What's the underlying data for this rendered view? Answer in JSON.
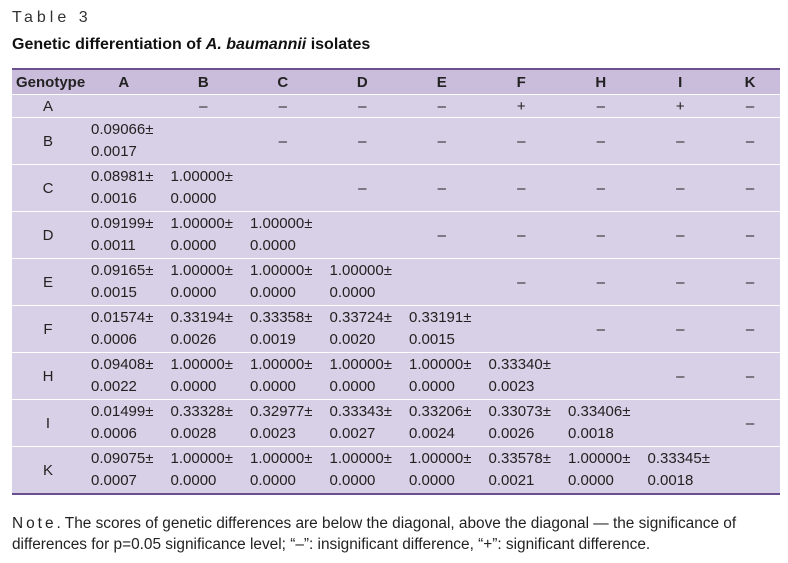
{
  "table_label": "Table 3",
  "title_prefix": "Genetic differentiation of ",
  "title_italic": "A. baumannii",
  "title_suffix": " isolates",
  "headers": [
    "Genotype",
    "A",
    "B",
    "C",
    "D",
    "E",
    "F",
    "H",
    "I",
    "K"
  ],
  "rows": [
    {
      "genotype": "A",
      "cells": [
        null,
        "–",
        "–",
        "–",
        "–",
        "+",
        "–",
        "+",
        "–"
      ]
    },
    {
      "genotype": "B",
      "cells": [
        [
          "0.09066±",
          "0.0017"
        ],
        null,
        "–",
        "–",
        "–",
        "–",
        "–",
        "–",
        "–"
      ]
    },
    {
      "genotype": "C",
      "cells": [
        [
          "0.08981±",
          "0.0016"
        ],
        [
          "1.00000±",
          "0.0000"
        ],
        null,
        "–",
        "–",
        "–",
        "–",
        "–",
        "–"
      ]
    },
    {
      "genotype": "D",
      "cells": [
        [
          "0.09199±",
          "0.0011"
        ],
        [
          "1.00000±",
          "0.0000"
        ],
        [
          "1.00000±",
          "0.0000"
        ],
        null,
        "–",
        "–",
        "–",
        "–",
        "–"
      ]
    },
    {
      "genotype": "E",
      "cells": [
        [
          "0.09165±",
          "0.0015"
        ],
        [
          "1.00000±",
          "0.0000"
        ],
        [
          "1.00000±",
          "0.0000"
        ],
        [
          "1.00000±",
          "0.0000"
        ],
        null,
        "–",
        "–",
        "–",
        "–"
      ]
    },
    {
      "genotype": "F",
      "cells": [
        [
          "0.01574±",
          "0.0006"
        ],
        [
          "0.33194±",
          "0.0026"
        ],
        [
          "0.33358±",
          "0.0019"
        ],
        [
          "0.33724±",
          "0.0020"
        ],
        [
          "0.33191±",
          "0.0015"
        ],
        null,
        "–",
        "–",
        "–"
      ]
    },
    {
      "genotype": "H",
      "cells": [
        [
          "0.09408±",
          "0.0022"
        ],
        [
          "1.00000±",
          "0.0000"
        ],
        [
          "1.00000±",
          "0.0000"
        ],
        [
          "1.00000±",
          "0.0000"
        ],
        [
          "1.00000±",
          "0.0000"
        ],
        [
          "0.33340±",
          "0.0023"
        ],
        null,
        "–",
        "–"
      ]
    },
    {
      "genotype": "I",
      "cells": [
        [
          "0.01499±",
          "0.0006"
        ],
        [
          "0.33328±",
          "0.0028"
        ],
        [
          "0.32977±",
          "0.0023"
        ],
        [
          "0.33343±",
          "0.0027"
        ],
        [
          "0.33206±",
          "0.0024"
        ],
        [
          "0.33073±",
          "0.0026"
        ],
        [
          "0.33406±",
          "0.0018"
        ],
        null,
        "–"
      ]
    },
    {
      "genotype": "K",
      "cells": [
        [
          "0.09075±",
          "0.0007"
        ],
        [
          "1.00000±",
          "0.0000"
        ],
        [
          "1.00000±",
          "0.0000"
        ],
        [
          "1.00000±",
          "0.0000"
        ],
        [
          "1.00000±",
          "0.0000"
        ],
        [
          "0.33578±",
          "0.0021"
        ],
        [
          "1.00000±",
          "0.0000"
        ],
        [
          "0.33345±",
          "0.0018"
        ],
        null
      ]
    }
  ],
  "note_word": "Note",
  "note_text": ". The scores of genetic differences are below the diagonal, above the diagonal — the significance of differences for p=0.05 significance level; “–”: insignificant difference, “+”: significant difference.",
  "colors": {
    "header_bg": "#c9bddb",
    "cell_bg": "#d8d0e6",
    "rule": "#6b4f8f"
  }
}
